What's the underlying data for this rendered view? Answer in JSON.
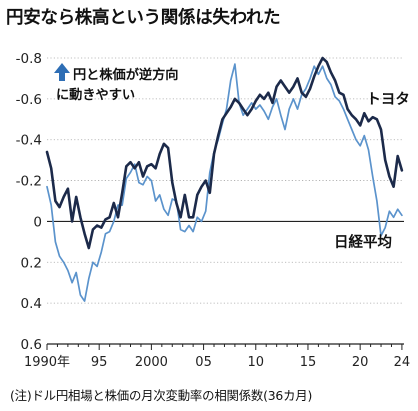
{
  "title": "円安なら株高という関係は失われた",
  "footnote": "(注)ドル円相場と株価の月次変動率の相関係数(36カ月)",
  "colors": {
    "toyota": "#1c2a4a",
    "nikkei": "#5b93cc",
    "arrow": "#2e6eb5",
    "axis": "#222222",
    "grid": "#aaaaaa"
  },
  "arrow_icon": "up-arrow-icon",
  "chart_data": {
    "type": "line",
    "title": "円安なら株高という関係は失われた",
    "xlabel": "",
    "ylabel": "",
    "y_inverted": true,
    "xlim": [
      1990,
      2024.2
    ],
    "ylim": [
      -0.8,
      0.6
    ],
    "y_ticks": [
      -0.8,
      -0.6,
      -0.4,
      -0.2,
      0,
      0.2,
      0.4,
      0.6
    ],
    "y_tick_labels": [
      "-0.8",
      "-0.6",
      "-0.4",
      "-0.2",
      "0",
      "0.2",
      "0.4",
      "0.6"
    ],
    "x_ticks": [
      1990,
      1995,
      2000,
      2005,
      2010,
      2015,
      2020,
      2024
    ],
    "x_tick_labels": [
      "1990年",
      "95",
      "2000",
      "05",
      "10",
      "15",
      "20",
      "24"
    ],
    "grid": "horizontal",
    "annotation": {
      "lines": [
        "円と株価が逆方向",
        "に動きやすい"
      ]
    },
    "series": [
      {
        "name": "トヨタ",
        "color": "#1c2a4a",
        "points": [
          [
            1990.0,
            -0.34
          ],
          [
            1990.4,
            -0.26
          ],
          [
            1990.8,
            -0.1
          ],
          [
            1991.2,
            -0.07
          ],
          [
            1991.6,
            -0.12
          ],
          [
            1992.0,
            -0.16
          ],
          [
            1992.4,
            0.0
          ],
          [
            1992.8,
            -0.12
          ],
          [
            1993.2,
            -0.02
          ],
          [
            1993.6,
            0.06
          ],
          [
            1994.0,
            0.13
          ],
          [
            1994.4,
            0.04
          ],
          [
            1994.8,
            0.02
          ],
          [
            1995.2,
            0.03
          ],
          [
            1995.6,
            -0.01
          ],
          [
            1996.0,
            -0.02
          ],
          [
            1996.4,
            -0.09
          ],
          [
            1996.8,
            -0.02
          ],
          [
            1997.2,
            -0.14
          ],
          [
            1997.6,
            -0.27
          ],
          [
            1998.0,
            -0.29
          ],
          [
            1998.4,
            -0.26
          ],
          [
            1998.8,
            -0.29
          ],
          [
            1999.2,
            -0.22
          ],
          [
            1999.6,
            -0.27
          ],
          [
            2000.0,
            -0.28
          ],
          [
            2000.4,
            -0.26
          ],
          [
            2000.8,
            -0.33
          ],
          [
            2001.2,
            -0.38
          ],
          [
            2001.6,
            -0.36
          ],
          [
            2002.0,
            -0.19
          ],
          [
            2002.4,
            -0.09
          ],
          [
            2002.8,
            -0.02
          ],
          [
            2003.2,
            -0.13
          ],
          [
            2003.6,
            -0.02
          ],
          [
            2004.0,
            -0.02
          ],
          [
            2004.4,
            -0.13
          ],
          [
            2004.8,
            -0.17
          ],
          [
            2005.2,
            -0.2
          ],
          [
            2005.6,
            -0.14
          ],
          [
            2006.0,
            -0.33
          ],
          [
            2006.4,
            -0.42
          ],
          [
            2006.8,
            -0.5
          ],
          [
            2007.2,
            -0.53
          ],
          [
            2007.6,
            -0.56
          ],
          [
            2008.0,
            -0.6
          ],
          [
            2008.4,
            -0.58
          ],
          [
            2008.8,
            -0.55
          ],
          [
            2009.2,
            -0.52
          ],
          [
            2009.6,
            -0.55
          ],
          [
            2010.0,
            -0.59
          ],
          [
            2010.4,
            -0.62
          ],
          [
            2010.8,
            -0.6
          ],
          [
            2011.2,
            -0.63
          ],
          [
            2011.6,
            -0.58
          ],
          [
            2012.0,
            -0.66
          ],
          [
            2012.4,
            -0.69
          ],
          [
            2012.8,
            -0.66
          ],
          [
            2013.2,
            -0.63
          ],
          [
            2013.6,
            -0.66
          ],
          [
            2014.0,
            -0.7
          ],
          [
            2014.4,
            -0.63
          ],
          [
            2014.8,
            -0.61
          ],
          [
            2015.2,
            -0.65
          ],
          [
            2015.6,
            -0.71
          ],
          [
            2016.0,
            -0.76
          ],
          [
            2016.4,
            -0.8
          ],
          [
            2016.8,
            -0.78
          ],
          [
            2017.2,
            -0.73
          ],
          [
            2017.6,
            -0.69
          ],
          [
            2018.0,
            -0.63
          ],
          [
            2018.4,
            -0.62
          ],
          [
            2018.8,
            -0.55
          ],
          [
            2019.2,
            -0.52
          ],
          [
            2019.6,
            -0.5
          ],
          [
            2020.0,
            -0.47
          ],
          [
            2020.4,
            -0.53
          ],
          [
            2020.8,
            -0.49
          ],
          [
            2021.2,
            -0.51
          ],
          [
            2021.6,
            -0.5
          ],
          [
            2022.0,
            -0.45
          ],
          [
            2022.4,
            -0.3
          ],
          [
            2022.8,
            -0.22
          ],
          [
            2023.2,
            -0.17
          ],
          [
            2023.6,
            -0.32
          ],
          [
            2024.0,
            -0.25
          ]
        ]
      },
      {
        "name": "日経平均",
        "color": "#5b93cc",
        "points": [
          [
            1990.0,
            -0.17
          ],
          [
            1990.4,
            -0.08
          ],
          [
            1990.8,
            0.1
          ],
          [
            1991.2,
            0.17
          ],
          [
            1991.6,
            0.2
          ],
          [
            1992.0,
            0.24
          ],
          [
            1992.4,
            0.3
          ],
          [
            1992.8,
            0.25
          ],
          [
            1993.2,
            0.36
          ],
          [
            1993.6,
            0.39
          ],
          [
            1994.0,
            0.28
          ],
          [
            1994.4,
            0.2
          ],
          [
            1994.8,
            0.22
          ],
          [
            1995.2,
            0.15
          ],
          [
            1995.6,
            0.06
          ],
          [
            1996.0,
            0.05
          ],
          [
            1996.4,
            0.0
          ],
          [
            1996.8,
            -0.08
          ],
          [
            1997.2,
            -0.08
          ],
          [
            1997.6,
            -0.21
          ],
          [
            1998.0,
            -0.24
          ],
          [
            1998.4,
            -0.28
          ],
          [
            1998.8,
            -0.19
          ],
          [
            1999.2,
            -0.18
          ],
          [
            1999.6,
            -0.22
          ],
          [
            2000.0,
            -0.2
          ],
          [
            2000.4,
            -0.1
          ],
          [
            2000.8,
            -0.13
          ],
          [
            2001.2,
            -0.06
          ],
          [
            2001.6,
            -0.03
          ],
          [
            2002.0,
            -0.11
          ],
          [
            2002.4,
            -0.1
          ],
          [
            2002.8,
            0.04
          ],
          [
            2003.2,
            0.05
          ],
          [
            2003.6,
            0.02
          ],
          [
            2004.0,
            0.05
          ],
          [
            2004.4,
            -0.02
          ],
          [
            2004.8,
            0.0
          ],
          [
            2005.2,
            -0.05
          ],
          [
            2005.6,
            -0.24
          ],
          [
            2006.0,
            -0.34
          ],
          [
            2006.4,
            -0.4
          ],
          [
            2006.8,
            -0.48
          ],
          [
            2007.2,
            -0.55
          ],
          [
            2007.6,
            -0.69
          ],
          [
            2008.0,
            -0.77
          ],
          [
            2008.4,
            -0.58
          ],
          [
            2008.8,
            -0.52
          ],
          [
            2009.2,
            -0.55
          ],
          [
            2009.6,
            -0.58
          ],
          [
            2010.0,
            -0.55
          ],
          [
            2010.4,
            -0.57
          ],
          [
            2010.8,
            -0.54
          ],
          [
            2011.2,
            -0.5
          ],
          [
            2011.6,
            -0.56
          ],
          [
            2012.0,
            -0.6
          ],
          [
            2012.4,
            -0.52
          ],
          [
            2012.8,
            -0.45
          ],
          [
            2013.2,
            -0.55
          ],
          [
            2013.6,
            -0.6
          ],
          [
            2014.0,
            -0.55
          ],
          [
            2014.4,
            -0.62
          ],
          [
            2014.8,
            -0.65
          ],
          [
            2015.2,
            -0.7
          ],
          [
            2015.6,
            -0.76
          ],
          [
            2016.0,
            -0.72
          ],
          [
            2016.4,
            -0.76
          ],
          [
            2016.8,
            -0.7
          ],
          [
            2017.2,
            -0.67
          ],
          [
            2017.6,
            -0.61
          ],
          [
            2018.0,
            -0.59
          ],
          [
            2018.4,
            -0.55
          ],
          [
            2018.8,
            -0.5
          ],
          [
            2019.2,
            -0.45
          ],
          [
            2019.6,
            -0.4
          ],
          [
            2020.0,
            -0.37
          ],
          [
            2020.4,
            -0.42
          ],
          [
            2020.8,
            -0.35
          ],
          [
            2021.2,
            -0.22
          ],
          [
            2021.6,
            -0.1
          ],
          [
            2022.0,
            0.07
          ],
          [
            2022.4,
            0.03
          ],
          [
            2022.8,
            -0.05
          ],
          [
            2023.2,
            -0.02
          ],
          [
            2023.6,
            -0.06
          ],
          [
            2024.0,
            -0.03
          ]
        ]
      }
    ]
  }
}
